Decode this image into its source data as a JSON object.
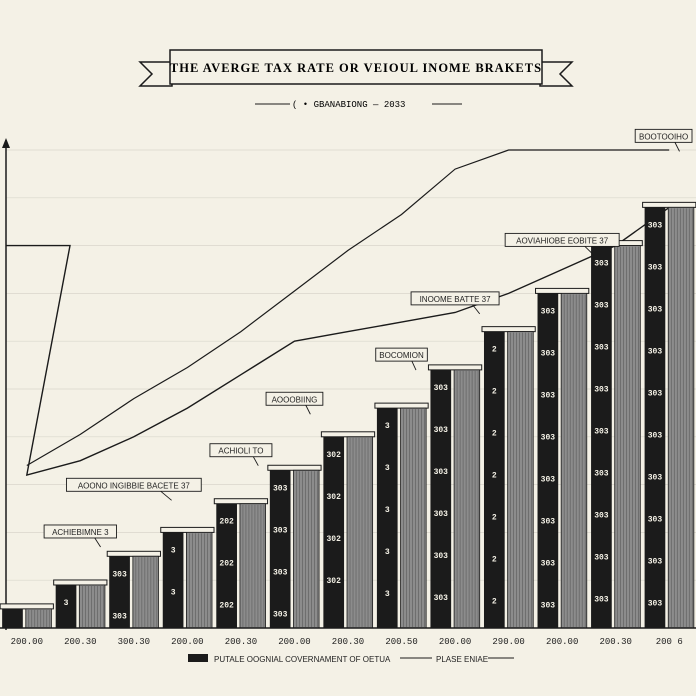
{
  "chart_data": {
    "type": "bar",
    "title": "THE AVERGE TAX RATE OR VEIOUL INOME BRAKETS",
    "subtitle": "( • GBANABIONG — 2033",
    "categories": [
      "200.00",
      "200.30",
      "300.30",
      "200.00",
      "200.30",
      "200.00",
      "200.30",
      "200.50",
      "200.00",
      "290.00",
      "200.00",
      "200.30",
      "200 6"
    ],
    "values": [
      4,
      9,
      15,
      20,
      26,
      33,
      40,
      46,
      54,
      62,
      70,
      80,
      88
    ],
    "line_values": [
      32,
      35,
      40,
      46,
      53,
      60,
      62,
      64,
      66,
      70,
      75,
      80,
      88
    ],
    "bar_labels": [
      "",
      "3",
      "303",
      "3",
      "202",
      "303",
      "302",
      "3",
      "303",
      "2",
      "303",
      "303",
      "303"
    ],
    "ylim": [
      0,
      100
    ],
    "grid": true,
    "legend": {
      "placement": "bottom",
      "items": [
        "PUTALE   OOGNIAL COVERNAMENT OF OETUA",
        "PLASE ENIAE"
      ]
    },
    "callouts": [
      {
        "text": "ACHIEBIMNE 3",
        "bar": 1
      },
      {
        "text": "AOONO INGIBBIE BACETE 37",
        "bar": 2
      },
      {
        "text": "ACHIOLI TO",
        "bar": 4
      },
      {
        "text": "AOOOBIING",
        "bar": 5
      },
      {
        "text": "BOCOMION",
        "bar": 7
      },
      {
        "text": "INOOME BATTE 37",
        "bar": 8
      },
      {
        "text": "AOVIAHIOBE EOBITE 37",
        "bar": 10
      },
      {
        "text": "BOOTOOIHO",
        "bar": 12
      }
    ]
  },
  "colors": {
    "background": "#f4f1e6",
    "bar": "#1b1b1b",
    "bar_shade": "#8c8c8c",
    "grid": "#d9d6cc",
    "line": "#1b1b1b"
  }
}
